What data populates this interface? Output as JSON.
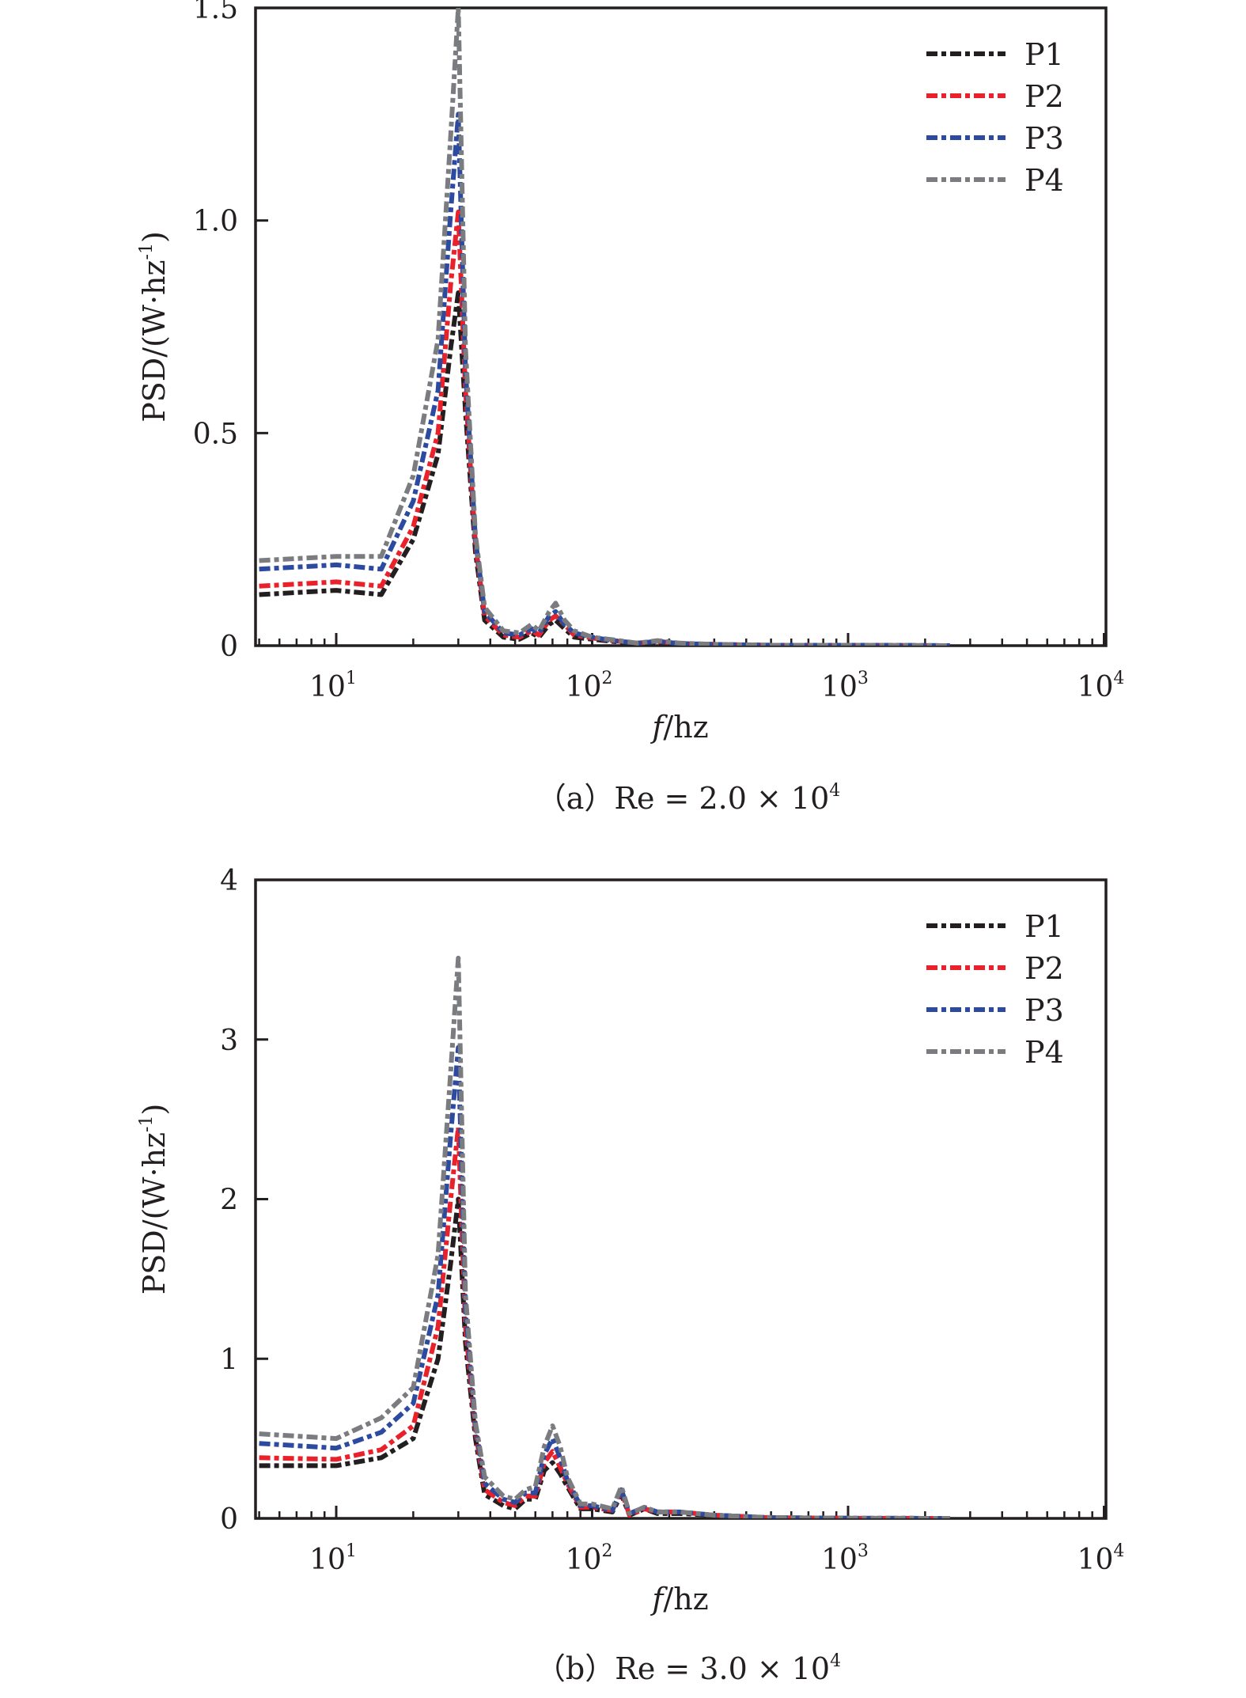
{
  "chart_data": [
    {
      "type": "line",
      "panel": "a",
      "caption": "（a）Re = 2.0 × 10",
      "caption_exp": "4",
      "xlabel_italic": "f",
      "xlabel_rest": "/hz",
      "ylabel": "PSD/(W·hz",
      "ylabel_exp": "-1",
      "ylabel_close": ")",
      "xscale": "log",
      "xlim": [
        5,
        10000
      ],
      "ylim": [
        0,
        1.5
      ],
      "yticks": [
        {
          "value": 0,
          "label": "0"
        },
        {
          "value": 0.5,
          "label": "0.5"
        },
        {
          "value": 1.0,
          "label": "1.0"
        },
        {
          "value": 1.5,
          "label": "1.5"
        }
      ],
      "xticks": [
        {
          "value": 10,
          "base": "10",
          "exp": "1"
        },
        {
          "value": 100,
          "base": "10",
          "exp": "2"
        },
        {
          "value": 1000,
          "base": "10",
          "exp": "3"
        },
        {
          "value": 10000,
          "base": "10",
          "exp": "4"
        }
      ],
      "legend": "top-right",
      "x": [
        5,
        10,
        15,
        20,
        25,
        28,
        30,
        32,
        35,
        38,
        45,
        52,
        58,
        62,
        68,
        72,
        78,
        85,
        100,
        120,
        150,
        180,
        220,
        300,
        500,
        1000,
        2500
      ],
      "series": [
        {
          "name": "P1",
          "color": "#231f20",
          "values": [
            0.12,
            0.13,
            0.12,
            0.25,
            0.45,
            0.7,
            0.83,
            0.55,
            0.22,
            0.06,
            0.02,
            0.015,
            0.03,
            0.02,
            0.05,
            0.06,
            0.04,
            0.02,
            0.015,
            0.01,
            0.005,
            0.008,
            0.004,
            0.002,
            0.001,
            0.001,
            0.0
          ]
        },
        {
          "name": "P2",
          "color": "#e8212b",
          "values": [
            0.14,
            0.15,
            0.14,
            0.28,
            0.5,
            0.85,
            1.02,
            0.6,
            0.24,
            0.07,
            0.025,
            0.02,
            0.035,
            0.025,
            0.06,
            0.07,
            0.05,
            0.025,
            0.018,
            0.012,
            0.006,
            0.01,
            0.005,
            0.003,
            0.001,
            0.001,
            0.0
          ]
        },
        {
          "name": "P3",
          "color": "#2c4ba0",
          "values": [
            0.18,
            0.19,
            0.18,
            0.34,
            0.6,
            1.02,
            1.25,
            0.65,
            0.25,
            0.08,
            0.03,
            0.025,
            0.04,
            0.03,
            0.07,
            0.08,
            0.05,
            0.03,
            0.02,
            0.012,
            0.006,
            0.01,
            0.005,
            0.003,
            0.001,
            0.001,
            0.0
          ]
        },
        {
          "name": "P4",
          "color": "#7a7c80",
          "values": [
            0.2,
            0.21,
            0.21,
            0.4,
            0.72,
            1.2,
            1.5,
            0.7,
            0.26,
            0.09,
            0.035,
            0.03,
            0.05,
            0.035,
            0.08,
            0.1,
            0.06,
            0.035,
            0.02,
            0.014,
            0.006,
            0.012,
            0.006,
            0.003,
            0.001,
            0.001,
            0.0
          ]
        }
      ]
    },
    {
      "type": "line",
      "panel": "b",
      "caption": "（b）Re = 3.0 × 10",
      "caption_exp": "4",
      "xlabel_italic": "f",
      "xlabel_rest": "/hz",
      "ylabel": "PSD/(W·hz",
      "ylabel_exp": "-1",
      "ylabel_close": ")",
      "xscale": "log",
      "xlim": [
        5,
        10000
      ],
      "ylim": [
        0,
        4
      ],
      "yticks": [
        {
          "value": 0,
          "label": "0"
        },
        {
          "value": 1,
          "label": "1"
        },
        {
          "value": 2,
          "label": "2"
        },
        {
          "value": 3,
          "label": "3"
        },
        {
          "value": 4,
          "label": "4"
        }
      ],
      "xticks": [
        {
          "value": 10,
          "base": "10",
          "exp": "1"
        },
        {
          "value": 100,
          "base": "10",
          "exp": "2"
        },
        {
          "value": 1000,
          "base": "10",
          "exp": "3"
        },
        {
          "value": 10000,
          "base": "10",
          "exp": "4"
        }
      ],
      "legend": "top-right",
      "x": [
        5,
        10,
        15,
        20,
        25,
        28,
        30,
        32,
        35,
        38,
        45,
        50,
        55,
        60,
        65,
        70,
        75,
        80,
        90,
        100,
        120,
        130,
        140,
        160,
        180,
        220,
        300,
        500,
        1000,
        2500
      ],
      "series": [
        {
          "name": "P1",
          "color": "#231f20",
          "values": [
            0.33,
            0.33,
            0.38,
            0.5,
            1.0,
            1.6,
            2.0,
            1.1,
            0.5,
            0.15,
            0.08,
            0.06,
            0.12,
            0.12,
            0.3,
            0.35,
            0.28,
            0.2,
            0.06,
            0.06,
            0.04,
            0.15,
            0.02,
            0.06,
            0.03,
            0.03,
            0.02,
            0.004,
            0.001,
            0.0
          ]
        },
        {
          "name": "P2",
          "color": "#e8212b",
          "values": [
            0.38,
            0.37,
            0.43,
            0.58,
            1.2,
            2.0,
            2.45,
            1.2,
            0.55,
            0.18,
            0.1,
            0.08,
            0.14,
            0.14,
            0.35,
            0.42,
            0.32,
            0.22,
            0.07,
            0.07,
            0.05,
            0.17,
            0.02,
            0.06,
            0.04,
            0.04,
            0.02,
            0.004,
            0.001,
            0.0
          ]
        },
        {
          "name": "P3",
          "color": "#2c4ba0",
          "values": [
            0.47,
            0.44,
            0.54,
            0.72,
            1.4,
            2.4,
            2.95,
            1.3,
            0.58,
            0.22,
            0.12,
            0.1,
            0.16,
            0.16,
            0.4,
            0.5,
            0.38,
            0.24,
            0.08,
            0.08,
            0.05,
            0.18,
            0.03,
            0.07,
            0.04,
            0.04,
            0.02,
            0.005,
            0.001,
            0.0
          ]
        },
        {
          "name": "P4",
          "color": "#7a7c80",
          "values": [
            0.53,
            0.5,
            0.63,
            0.82,
            1.65,
            2.8,
            3.51,
            1.4,
            0.6,
            0.26,
            0.14,
            0.12,
            0.18,
            0.2,
            0.45,
            0.58,
            0.45,
            0.26,
            0.09,
            0.09,
            0.06,
            0.2,
            0.03,
            0.07,
            0.04,
            0.04,
            0.02,
            0.005,
            0.001,
            0.0
          ]
        }
      ]
    }
  ]
}
